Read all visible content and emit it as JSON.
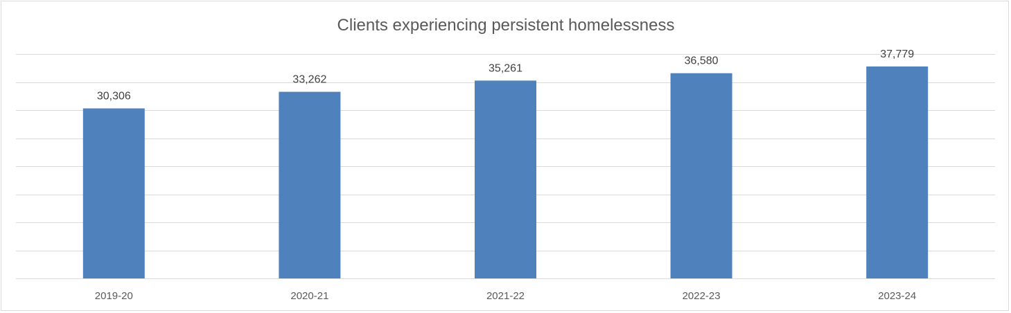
{
  "chart_data": {
    "type": "bar",
    "title": "Clients experiencing persistent homelessness",
    "categories": [
      "2019-20",
      "2020-21",
      "2021-22",
      "2022-23",
      "2023-24"
    ],
    "values": [
      30306,
      33262,
      35261,
      36580,
      37779
    ],
    "data_labels": [
      "30,306",
      "33,262",
      "35,261",
      "36,580",
      "37,779"
    ],
    "xlabel": "",
    "ylabel": "",
    "ylim": [
      0,
      40000
    ],
    "y_tick_step": 5000,
    "y_tick_labels_visible": false,
    "grid": true,
    "legend": "none",
    "bar_color": "#4f81bd"
  }
}
